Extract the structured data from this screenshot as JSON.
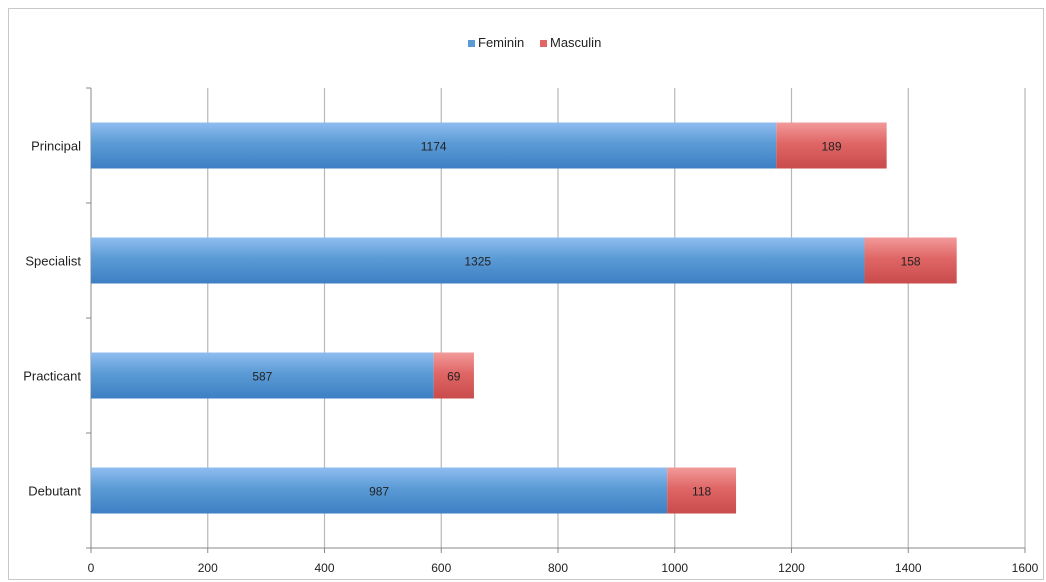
{
  "chart_data": {
    "type": "bar",
    "orientation": "horizontal",
    "stacked": true,
    "categories": [
      "Debutant",
      "Practicant",
      "Specialist",
      "Principal"
    ],
    "series": [
      {
        "name": "Feminin",
        "values": [
          987,
          587,
          1325,
          1174
        ],
        "color": "#5b9bd5"
      },
      {
        "name": "Masculin",
        "values": [
          118,
          69,
          158,
          189
        ],
        "color": "#e06666"
      }
    ],
    "xlim": [
      0,
      1600
    ],
    "xticks": [
      0,
      200,
      400,
      600,
      800,
      1000,
      1200,
      1400,
      1600
    ],
    "grid": true,
    "legend_position": "top-center",
    "data_labels": true
  }
}
